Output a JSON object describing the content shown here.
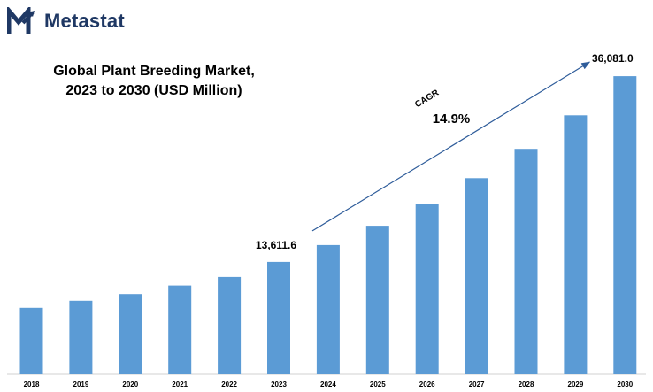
{
  "brand": {
    "name": "Metastat",
    "color": "#1f3864"
  },
  "chart_data": {
    "type": "bar",
    "title_lines": [
      "Global Plant Breeding Market,",
      "2023 to 2030 (USD Million)"
    ],
    "xlabel": "",
    "ylabel": "",
    "categories": [
      "2018",
      "2019",
      "2020",
      "2021",
      "2022",
      "2023",
      "2024",
      "2025",
      "2026",
      "2027",
      "2028",
      "2029",
      "2030"
    ],
    "values": [
      8050,
      8910,
      9720,
      10750,
      11790,
      13611.6,
      15650,
      17980,
      20660,
      23740,
      27280,
      31340,
      36081.0
    ],
    "ylim": [
      0,
      39300
    ],
    "bar_color": "#5b9bd5",
    "grid": false,
    "legend": "none",
    "data_labels": [
      {
        "category": "2023",
        "text": "13,611.6"
      },
      {
        "category": "2030",
        "text": "36,081.0"
      }
    ],
    "annotation": {
      "label": "CAGR",
      "value": "14.9%",
      "arrow_from": "2023",
      "arrow_to": "2030",
      "arrow_color": "#2e5c9a"
    }
  }
}
